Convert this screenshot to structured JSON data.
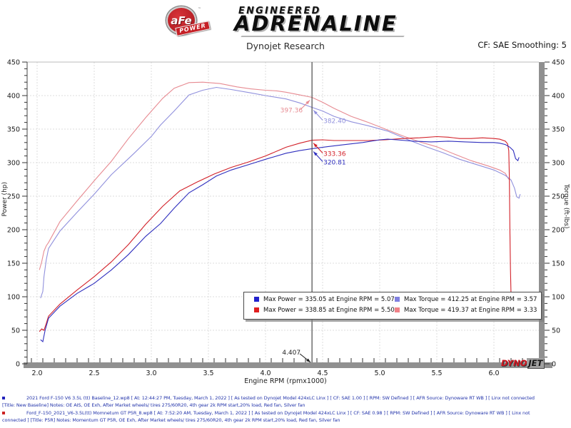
{
  "header": {
    "badge_main": "aFe",
    "badge_sub": "POWER",
    "badge_tm": "™",
    "tagline_top": "ENGINEERED",
    "tagline_main": "ADRENALINE",
    "title": "Dynojet Research",
    "correction": "CF: SAE Smoothing: 5"
  },
  "chart_data": {
    "type": "line",
    "title": "Dynojet Research",
    "xlabel": "Engine RPM (rpmx1000)",
    "ylabel_left": "Power (hp)",
    "ylabel_right": "Torque (ft-lbs)",
    "x_range": [
      1.91,
      6.45
    ],
    "y_range": [
      0,
      450
    ],
    "x_ticks": [
      2.0,
      2.5,
      3.0,
      3.5,
      4.0,
      4.5,
      5.0,
      5.5,
      6.0
    ],
    "y_ticks": [
      0,
      50,
      100,
      150,
      200,
      250,
      300,
      350,
      400,
      450
    ],
    "x_minor_step": 0.1,
    "y_minor_step": 10,
    "grid": true,
    "cursor": {
      "rpm": 4.407,
      "label": "4.407"
    },
    "series": [
      {
        "name": "torque-red",
        "axis": "torque",
        "color": "#e78b92",
        "points": [
          [
            2.02,
            140
          ],
          [
            2.04,
            152
          ],
          [
            2.06,
            168
          ],
          [
            2.08,
            176
          ],
          [
            2.1,
            181
          ],
          [
            2.2,
            212
          ],
          [
            2.35,
            243
          ],
          [
            2.5,
            273
          ],
          [
            2.65,
            302
          ],
          [
            2.8,
            336
          ],
          [
            2.95,
            367
          ],
          [
            3.1,
            396
          ],
          [
            3.2,
            411
          ],
          [
            3.33,
            419.37
          ],
          [
            3.45,
            420
          ],
          [
            3.6,
            418
          ],
          [
            3.75,
            413
          ],
          [
            3.87,
            410
          ],
          [
            4.0,
            408
          ],
          [
            4.1,
            407
          ],
          [
            4.18,
            405
          ],
          [
            4.3,
            401
          ],
          [
            4.407,
            397.36
          ],
          [
            4.5,
            390
          ],
          [
            4.6,
            381
          ],
          [
            4.75,
            369
          ],
          [
            4.9,
            360
          ],
          [
            5.05,
            350
          ],
          [
            5.2,
            340
          ],
          [
            5.35,
            331
          ],
          [
            5.5,
            323.6
          ],
          [
            5.65,
            313
          ],
          [
            5.8,
            303
          ],
          [
            5.95,
            295
          ],
          [
            6.05,
            289
          ],
          [
            6.1,
            284
          ],
          [
            6.13,
            275
          ]
        ]
      },
      {
        "name": "torque-blue",
        "axis": "torque",
        "color": "#9191dd",
        "points": [
          [
            2.03,
            98
          ],
          [
            2.05,
            108
          ],
          [
            2.06,
            130
          ],
          [
            2.08,
            155
          ],
          [
            2.1,
            172
          ],
          [
            2.2,
            198
          ],
          [
            2.35,
            226
          ],
          [
            2.5,
            253
          ],
          [
            2.65,
            282
          ],
          [
            2.85,
            314
          ],
          [
            3.0,
            339
          ],
          [
            3.08,
            356
          ],
          [
            3.2,
            377
          ],
          [
            3.33,
            401
          ],
          [
            3.45,
            408
          ],
          [
            3.57,
            412.25
          ],
          [
            3.7,
            409
          ],
          [
            3.87,
            404
          ],
          [
            4.0,
            400
          ],
          [
            4.18,
            395
          ],
          [
            4.3,
            389
          ],
          [
            4.407,
            382.4
          ],
          [
            4.5,
            377
          ],
          [
            4.6,
            369
          ],
          [
            4.75,
            361
          ],
          [
            4.9,
            355
          ],
          [
            5.07,
            347
          ],
          [
            5.25,
            334
          ],
          [
            5.4,
            324
          ],
          [
            5.55,
            315
          ],
          [
            5.7,
            305
          ],
          [
            5.85,
            297
          ],
          [
            6.0,
            289
          ],
          [
            6.1,
            281
          ],
          [
            6.15,
            274
          ],
          [
            6.18,
            262
          ],
          [
            6.2,
            249
          ],
          [
            6.22,
            247
          ],
          [
            6.23,
            253
          ]
        ]
      },
      {
        "name": "power-red",
        "axis": "power",
        "color": "#d22028",
        "points": [
          [
            2.02,
            48
          ],
          [
            2.04,
            52
          ],
          [
            2.06,
            50
          ],
          [
            2.08,
            60
          ],
          [
            2.1,
            71
          ],
          [
            2.2,
            89
          ],
          [
            2.35,
            110
          ],
          [
            2.5,
            130
          ],
          [
            2.65,
            152
          ],
          [
            2.8,
            178
          ],
          [
            2.95,
            208
          ],
          [
            3.1,
            235
          ],
          [
            3.25,
            258
          ],
          [
            3.4,
            271
          ],
          [
            3.55,
            283
          ],
          [
            3.7,
            293
          ],
          [
            3.85,
            301
          ],
          [
            4.0,
            310
          ],
          [
            4.18,
            323
          ],
          [
            4.3,
            329
          ],
          [
            4.407,
            333.36
          ],
          [
            4.5,
            334
          ],
          [
            4.6,
            333
          ],
          [
            4.75,
            333
          ],
          [
            4.9,
            333
          ],
          [
            5.05,
            334
          ],
          [
            5.2,
            336
          ],
          [
            5.35,
            337
          ],
          [
            5.5,
            338.85
          ],
          [
            5.6,
            338
          ],
          [
            5.7,
            336
          ],
          [
            5.8,
            336
          ],
          [
            5.9,
            337
          ],
          [
            6.0,
            336
          ],
          [
            6.05,
            335
          ],
          [
            6.1,
            332
          ],
          [
            6.12,
            328
          ],
          [
            6.13,
            318
          ],
          [
            6.135,
            280
          ],
          [
            6.14,
            200
          ],
          [
            6.145,
            140
          ],
          [
            6.15,
            103
          ]
        ]
      },
      {
        "name": "power-blue",
        "axis": "power",
        "color": "#2f2fbe",
        "points": [
          [
            2.03,
            36
          ],
          [
            2.05,
            33
          ],
          [
            2.07,
            50
          ],
          [
            2.1,
            68
          ],
          [
            2.2,
            86
          ],
          [
            2.35,
            105
          ],
          [
            2.5,
            120
          ],
          [
            2.65,
            140
          ],
          [
            2.8,
            163
          ],
          [
            2.95,
            190
          ],
          [
            3.08,
            209
          ],
          [
            3.2,
            232
          ],
          [
            3.33,
            255
          ],
          [
            3.45,
            267
          ],
          [
            3.57,
            280
          ],
          [
            3.7,
            289
          ],
          [
            3.87,
            298
          ],
          [
            4.0,
            305
          ],
          [
            4.18,
            314
          ],
          [
            4.3,
            318
          ],
          [
            4.407,
            320.81
          ],
          [
            4.55,
            324
          ],
          [
            4.7,
            327
          ],
          [
            4.85,
            330
          ],
          [
            5.0,
            334
          ],
          [
            5.07,
            335.05
          ],
          [
            5.15,
            334
          ],
          [
            5.3,
            332
          ],
          [
            5.45,
            331
          ],
          [
            5.6,
            332
          ],
          [
            5.75,
            331
          ],
          [
            5.9,
            330
          ],
          [
            6.0,
            330
          ],
          [
            6.05,
            329
          ],
          [
            6.1,
            327
          ],
          [
            6.14,
            323
          ],
          [
            6.17,
            318
          ],
          [
            6.19,
            306
          ],
          [
            6.21,
            303
          ],
          [
            6.22,
            308
          ]
        ]
      }
    ],
    "annotations": [
      {
        "text": "397.36",
        "color": "#e78b92",
        "rpm": 4.407,
        "value": 397.36,
        "side": "left"
      },
      {
        "text": "382.40",
        "color": "#9191dd",
        "rpm": 4.407,
        "value": 382.4,
        "side": "right"
      },
      {
        "text": "333.36",
        "color": "#d22028",
        "rpm": 4.407,
        "value": 333.36,
        "side": "right"
      },
      {
        "text": "320.81",
        "color": "#2f2fbe",
        "rpm": 4.407,
        "value": 320.81,
        "side": "right"
      }
    ],
    "legend": {
      "position": "bottom-center",
      "items": [
        {
          "color": "#2222cc",
          "text": "Max Power = 335.05 at Engine RPM = 5.07"
        },
        {
          "color": "#8080e0",
          "text": "Max Torque = 412.25 at Engine RPM = 3.57"
        },
        {
          "color": "#e01f1f",
          "text": "Max Power = 338.85 at Engine RPM = 5.50"
        },
        {
          "color": "#f08288",
          "text": "Max Torque = 419.37 at Engine RPM = 3.33"
        }
      ]
    },
    "watermark": {
      "part1": "DYNO",
      "part2": "JET"
    }
  },
  "footer": {
    "runs": [
      {
        "bullet_color": "#2222bb",
        "line1": "2021 Ford F-150 V6 3.5L (tt) Baseline_12.wp8 [ At: 12:44:27 PM, Tuesday, March 1, 2022 ] [ As tested on Dynojet Model 424xLC Linx ] [ CF: SAE 1.00 ] [ RPM: SW Defined ] [ AFR Source: Dynoware RT WB ] [ Linx not connected",
        "line2": "[Title: New Baseline]  Notes: OE AIS, OE Exh, After Market wheels/ tires 275/60R20, 4th gear 2k RPM start,20% load, Red fan, Silver fan"
      },
      {
        "bullet_color": "#cc2222",
        "line1": "Ford_F-150_2021_V6-3.5L(tt) Momnetum GT P5R_8.wp8 [ At: 7:52:20 AM, Tuesday, March 1, 2022 ] [ As tested on Dynojet Model 424xLC Linx ] [ CF: SAE 0.98 ] [ RPM: SW Defined ] [ AFR Source: Dynoware RT WB ] [ Linx not",
        "line2": "connected ] [Title: P5R]  Notes: Momentum GT  P5R, OE Exh, After Market wheels/ tires 275/60R20, 4th gear 2k RPM start,20% load, Red fan, Silver fan"
      }
    ]
  }
}
